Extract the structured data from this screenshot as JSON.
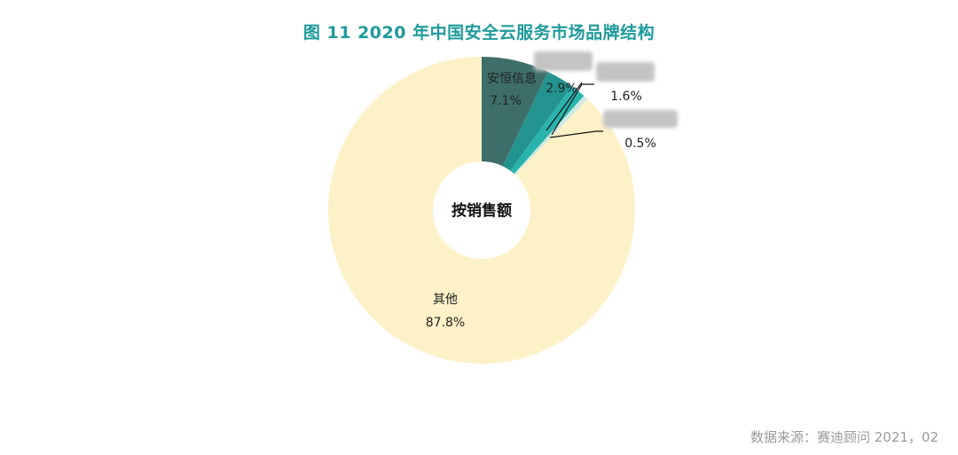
{
  "page": {
    "source": "数据来源：赛迪顾问    2021，02"
  },
  "chart_data": {
    "type": "pie",
    "title": "图  11    2020 年中国安全云服务市场品牌结构",
    "center_label": "按销售额",
    "slices": [
      {
        "name": "安恒信息",
        "value": 7.1,
        "value_label": "7.1%",
        "color": "#3e6e6a"
      },
      {
        "name": "",
        "value": 2.9,
        "value_label": "2.9%",
        "color": "#23938f",
        "name_obscured": true
      },
      {
        "name": "",
        "value": 1.6,
        "value_label": "1.6%",
        "color": "#29b3ad",
        "name_obscured": true
      },
      {
        "name": "",
        "value": 0.5,
        "value_label": "0.5%",
        "color": "#cfe9e1",
        "name_obscured": true
      },
      {
        "name": "其他",
        "value": 87.8,
        "value_label": "87.8%",
        "color": "#fdf1c8"
      }
    ],
    "start_angle": "12 o'clock",
    "direction": "clockwise",
    "donut": true
  }
}
